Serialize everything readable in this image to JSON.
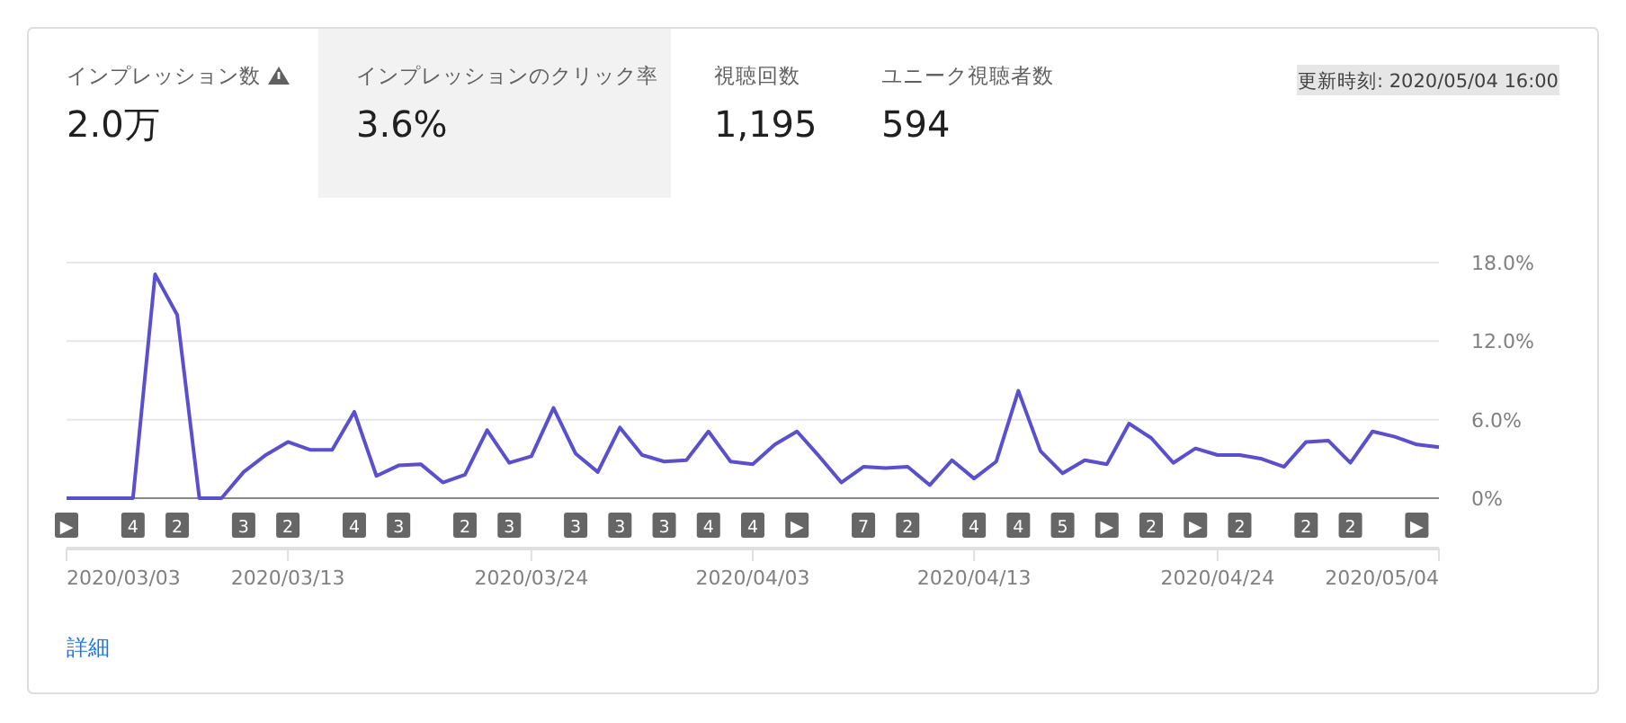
{
  "chart_data": {
    "type": "line",
    "x": [
      "2020-03-03",
      "2020-03-04",
      "2020-03-05",
      "2020-03-06",
      "2020-03-07",
      "2020-03-08",
      "2020-03-09",
      "2020-03-10",
      "2020-03-11",
      "2020-03-12",
      "2020-03-13",
      "2020-03-14",
      "2020-03-15",
      "2020-03-16",
      "2020-03-17",
      "2020-03-18",
      "2020-03-19",
      "2020-03-20",
      "2020-03-21",
      "2020-03-22",
      "2020-03-23",
      "2020-03-24",
      "2020-03-25",
      "2020-03-26",
      "2020-03-27",
      "2020-03-28",
      "2020-03-29",
      "2020-03-30",
      "2020-03-31",
      "2020-04-01",
      "2020-04-02",
      "2020-04-03",
      "2020-04-04",
      "2020-04-05",
      "2020-04-06",
      "2020-04-07",
      "2020-04-08",
      "2020-04-09",
      "2020-04-10",
      "2020-04-11",
      "2020-04-12",
      "2020-04-13",
      "2020-04-14",
      "2020-04-15",
      "2020-04-16",
      "2020-04-17",
      "2020-04-18",
      "2020-04-19",
      "2020-04-20",
      "2020-04-21",
      "2020-04-22",
      "2020-04-23",
      "2020-04-24",
      "2020-04-25",
      "2020-04-26",
      "2020-04-27",
      "2020-04-28",
      "2020-04-29",
      "2020-04-30",
      "2020-05-01",
      "2020-05-02",
      "2020-05-03",
      "2020-05-04"
    ],
    "series": [
      {
        "color": "#5a4fcf",
        "values": [
          0,
          0,
          0,
          0,
          17.1,
          14.0,
          0,
          0,
          2.0,
          3.3,
          4.3,
          3.7,
          3.7,
          6.6,
          1.7,
          2.5,
          2.6,
          1.2,
          1.8,
          5.2,
          2.7,
          3.2,
          6.9,
          3.4,
          2.0,
          5.4,
          3.3,
          2.8,
          2.9,
          5.1,
          2.8,
          2.6,
          4.1,
          5.1,
          3.2,
          1.2,
          2.4,
          2.3,
          2.4,
          1.0,
          2.9,
          1.5,
          2.8,
          8.2,
          3.6,
          1.9,
          2.9,
          2.6,
          5.7,
          4.6,
          2.7,
          3.8,
          3.3,
          3.3,
          3.0,
          2.4,
          4.3,
          4.4,
          2.7,
          5.1,
          4.7,
          4.1,
          3.9
        ]
      }
    ],
    "xlim": [
      "2020-03-03",
      "2020-05-04"
    ],
    "xticks": [
      {
        "value": "2020-03-03",
        "label": "2020/03/03"
      },
      {
        "value": "2020-03-13",
        "label": "2020/03/13"
      },
      {
        "value": "2020-03-24",
        "label": "2020/03/24"
      },
      {
        "value": "2020-04-03",
        "label": "2020/04/03"
      },
      {
        "value": "2020-04-13",
        "label": "2020/04/13"
      },
      {
        "value": "2020-04-24",
        "label": "2020/04/24"
      },
      {
        "value": "2020-05-04",
        "label": "2020/05/04"
      }
    ],
    "ylim": [
      0,
      18
    ],
    "yticks": [
      {
        "value": 0,
        "label": "0%"
      },
      {
        "value": 6,
        "label": "6.0%"
      },
      {
        "value": 12,
        "label": "12.0%"
      },
      {
        "value": 18,
        "label": "18.0%"
      }
    ],
    "grid": "y",
    "marker": "none",
    "line_style": "solid",
    "annotations": [
      "インプレッション数",
      "2.0万",
      "インプレッションのクリック率",
      "3.6%",
      "視聴回数",
      "1,195",
      "ユニーク視聴者数",
      "594",
      "更新時刻: 2020/05/04 16:00",
      "詳細",
      "▶",
      "4",
      "2",
      "3",
      "2",
      "4",
      "3",
      "2",
      "3",
      "3",
      "3",
      "3",
      "4",
      "4",
      "▶",
      "7",
      "2",
      "4",
      "4",
      "5",
      "▶",
      "2",
      "▶",
      "2",
      "2",
      "2",
      "▶"
    ]
  }
}
